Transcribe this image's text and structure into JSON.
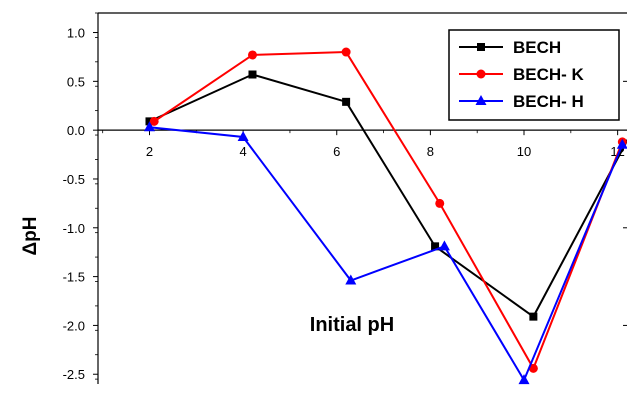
{
  "chart_data": {
    "type": "line",
    "xlabel": "Initial pH",
    "ylabel": "ΔpH",
    "xlim": [
      0.9,
      12.2
    ],
    "ylim": [
      -2.6,
      1.2
    ],
    "xticks": [
      2,
      4,
      6,
      8,
      10,
      12
    ],
    "yticks": [
      1.0,
      0.5,
      0.0,
      -0.5,
      -1.0,
      -1.5,
      -2.0,
      -2.5
    ],
    "ytick_labels": [
      "1.0",
      "0.5",
      "0.0",
      "-0.5",
      "-1.0",
      "-1.5",
      "-2.0",
      "-2.5"
    ],
    "xtick_labels": [
      "2",
      "4",
      "6",
      "8",
      "10",
      "12"
    ],
    "legend_position": "top-right",
    "grid": false,
    "series": [
      {
        "name": "BECH",
        "color": "#000000",
        "marker": "square",
        "x": [
          2.0,
          4.2,
          6.2,
          8.1,
          10.2,
          12.3
        ],
        "y": [
          0.09,
          0.57,
          0.29,
          -1.19,
          -1.91,
          -0.02
        ]
      },
      {
        "name": "BECH- K",
        "color": "#ff0000",
        "marker": "circle",
        "x": [
          2.1,
          4.2,
          6.2,
          8.2,
          10.2,
          12.1
        ],
        "y": [
          0.09,
          0.77,
          0.8,
          -0.75,
          -2.44,
          -0.12
        ]
      },
      {
        "name": "BECH- H",
        "color": "#0000ff",
        "marker": "triangle",
        "x": [
          2.0,
          4.0,
          6.3,
          8.3,
          10.0,
          12.1
        ],
        "y": [
          0.03,
          -0.07,
          -1.54,
          -1.19,
          -2.56,
          -0.15
        ]
      }
    ]
  }
}
